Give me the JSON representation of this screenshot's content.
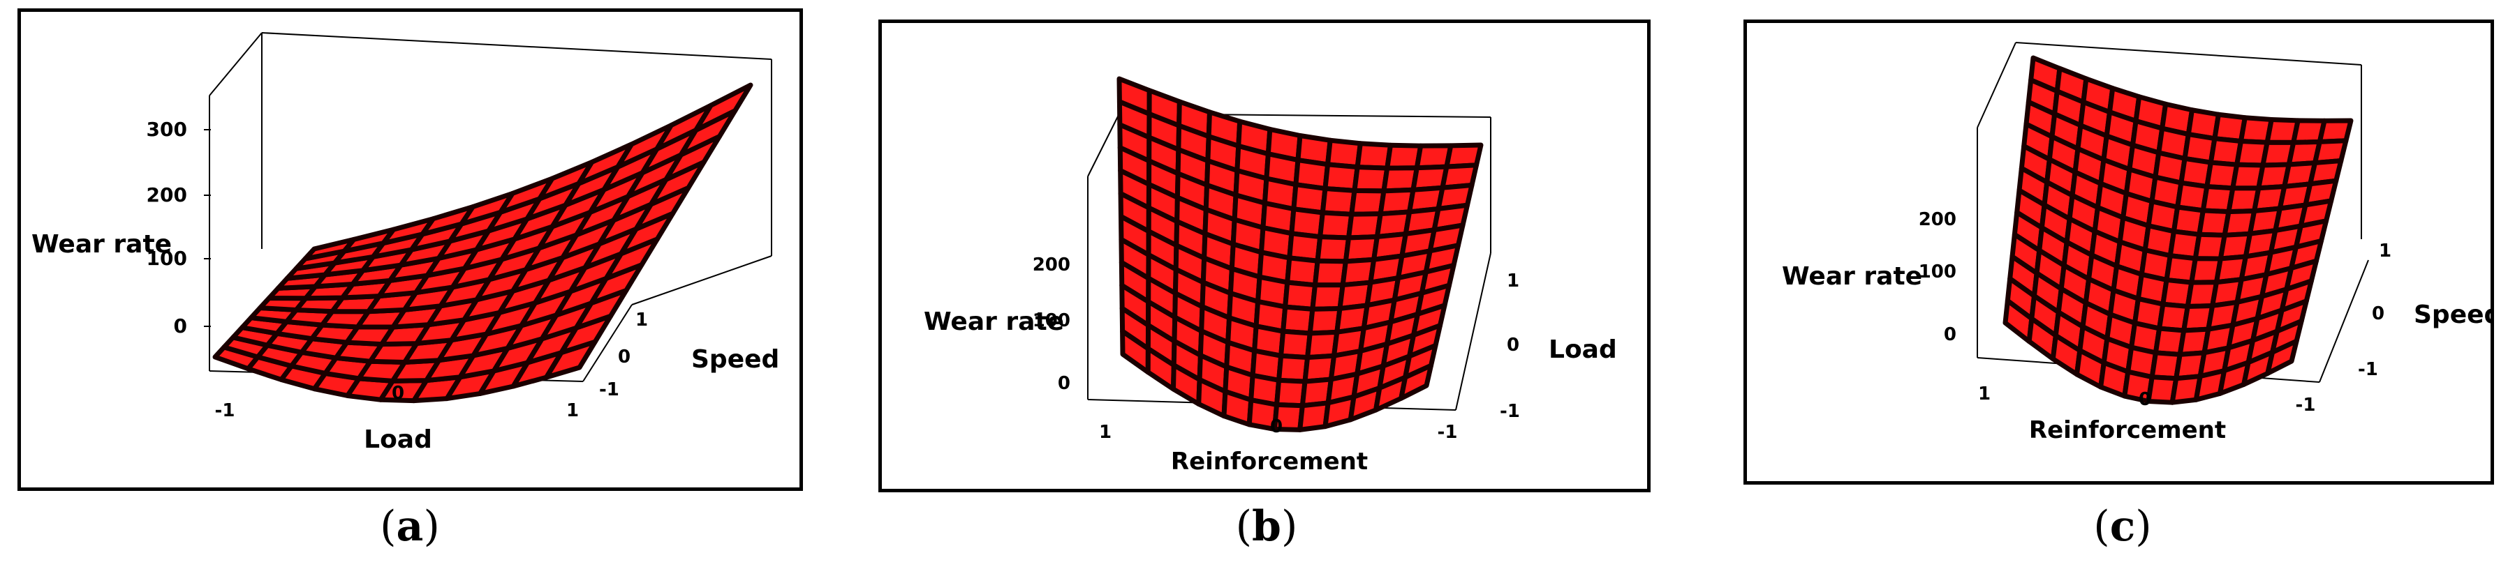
{
  "figure": {
    "captions": [
      {
        "open": "(",
        "letter": "a",
        "close": ")"
      },
      {
        "open": "(",
        "letter": "b",
        "close": ")"
      },
      {
        "open": "(",
        "letter": "c",
        "close": ")"
      }
    ]
  },
  "colors": {
    "surface_fill": "#ff1a1a",
    "surface_grid": "#1a0000",
    "axis_line": "#000000",
    "panel_border": "#000000"
  },
  "chart_data": [
    {
      "type": "surface",
      "zlabel": "Wear rate",
      "xlabel": "Load",
      "ylabel": "Speed",
      "z_ticks": [
        "0",
        "100",
        "200",
        "300"
      ],
      "x_ticks": [
        "-1",
        "0",
        "1"
      ],
      "y_ticks": [
        "-1",
        "0",
        "1"
      ],
      "zlim": [
        0,
        300
      ],
      "xlim": [
        -1,
        1
      ],
      "ylim": [
        -1,
        1
      ],
      "grid_size": 11,
      "shape_note": "Wear rate rises steeply with Load and Speed; low near 0 at Load=-1"
    },
    {
      "type": "surface",
      "zlabel": "Wear rate",
      "xlabel": "Reinforcement",
      "ylabel": "Load",
      "z_ticks": [
        "0",
        "100",
        "200"
      ],
      "x_ticks": [
        "1",
        "0",
        "-1"
      ],
      "y_ticks": [
        "-1",
        "0",
        "1"
      ],
      "zlim": [
        0,
        250
      ],
      "xlim": [
        1,
        -1
      ],
      "ylim": [
        -1,
        1
      ],
      "grid_size": 12,
      "shape_note": "Curved saddle-like surface, high at edges"
    },
    {
      "type": "surface",
      "zlabel": "Wear rate",
      "xlabel": "Reinforcement",
      "ylabel": "Speed",
      "z_ticks": [
        "0",
        "100",
        "200"
      ],
      "x_ticks": [
        "1",
        "0",
        "-1"
      ],
      "y_ticks": [
        "-1",
        "0",
        "1"
      ],
      "zlim": [
        0,
        250
      ],
      "xlim": [
        1,
        -1
      ],
      "ylim": [
        -1,
        1
      ],
      "grid_size": 12,
      "shape_note": "Curved surface rising toward high Speed"
    }
  ]
}
